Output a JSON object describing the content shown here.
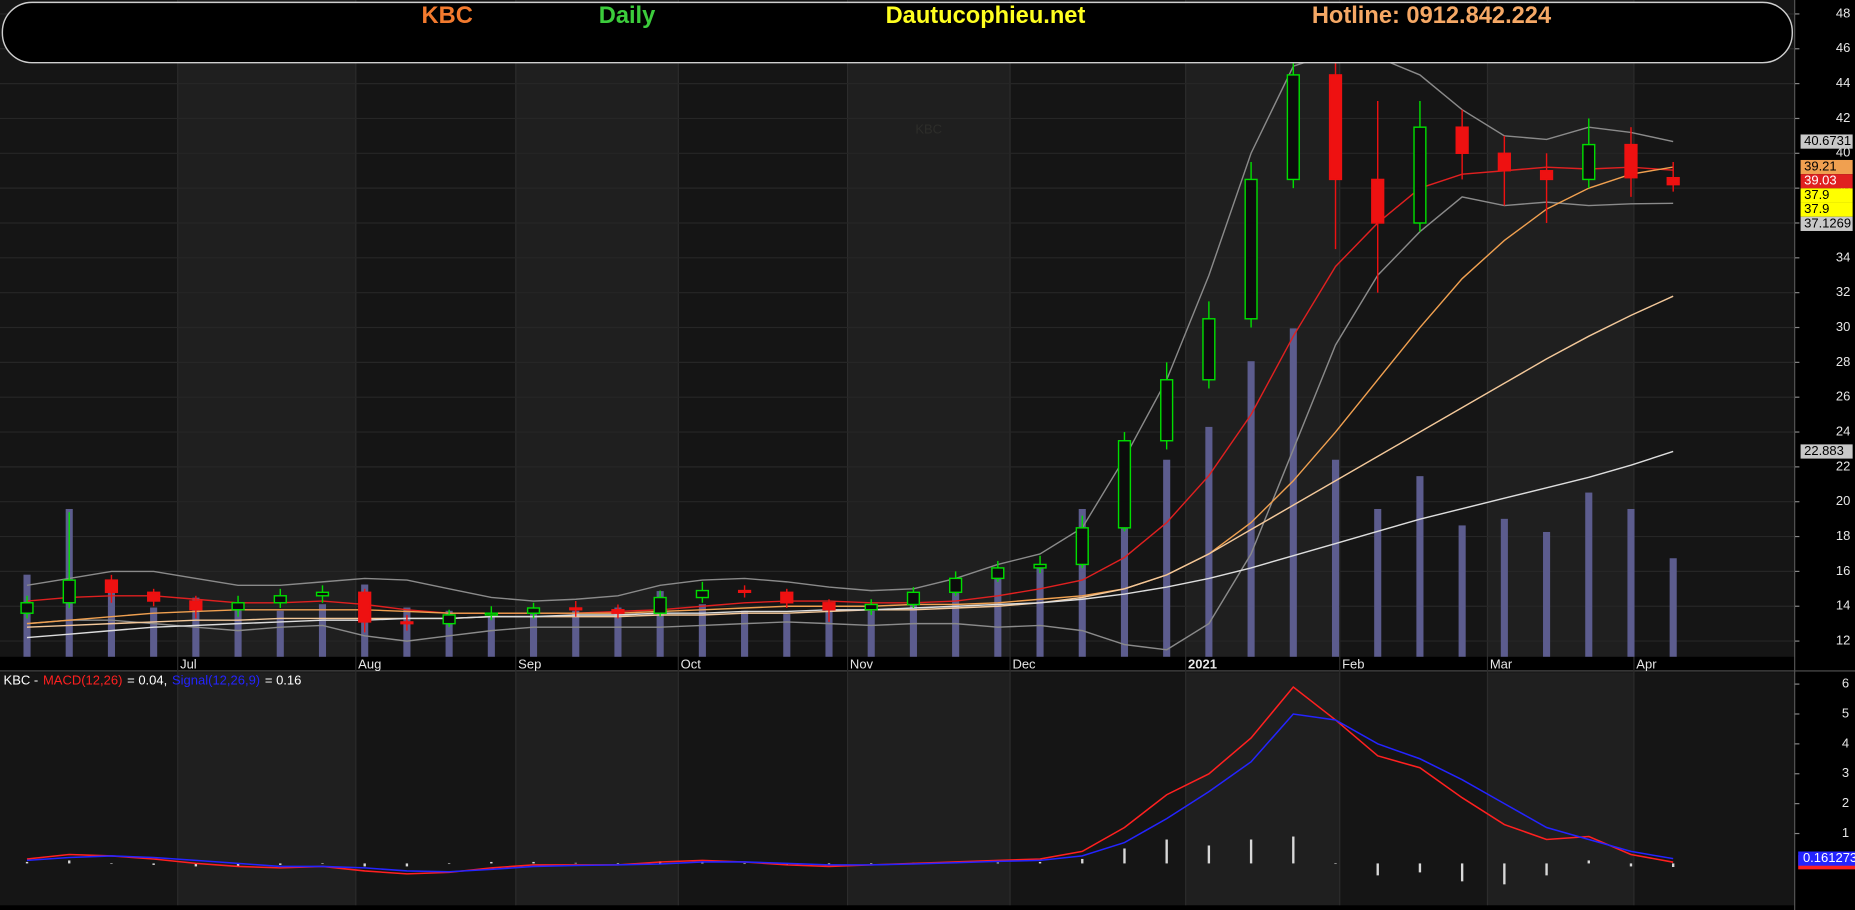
{
  "header": {
    "symbol": "KBC",
    "period": "Daily",
    "site": "Dautucophieu.net",
    "hotline": "Hotline: 0912.842.224"
  },
  "chart_data": [
    {
      "type": "candlestick",
      "watermark": "KBC",
      "xlim": [
        -0.5,
        40
      ],
      "xticks": [
        {
          "value": 3.57,
          "label": "Jul"
        },
        {
          "value": 7.79,
          "label": "Aug"
        },
        {
          "value": 11.58,
          "label": "Sep"
        },
        {
          "value": 15.43,
          "label": "Oct"
        },
        {
          "value": 19.44,
          "label": "Nov"
        },
        {
          "value": 23.29,
          "label": "Dec"
        },
        {
          "value": 27.45,
          "label": "2021"
        },
        {
          "value": 31.1,
          "label": "Feb"
        },
        {
          "value": 34.6,
          "label": "Mar"
        },
        {
          "value": 38.07,
          "label": "Apr"
        }
      ],
      "ylim": [
        11.1,
        48.8
      ],
      "yticks": [
        12,
        14,
        16,
        18,
        20,
        22,
        24,
        26,
        28,
        30,
        32,
        34,
        36,
        38,
        40,
        42,
        44,
        46,
        48
      ],
      "grid": true,
      "up_color": "#00dd00",
      "down_color": "#ee1111",
      "open": [
        13.6,
        14.2,
        15.5,
        14.8,
        14.3,
        13.8,
        14.2,
        14.6,
        14.8,
        13.1,
        13.0,
        13.5,
        13.6,
        13.9,
        13.8,
        13.6,
        14.5,
        14.9,
        14.8,
        14.2,
        13.8,
        14.1,
        14.8,
        15.6,
        16.2,
        16.4,
        18.5,
        23.5,
        27.0,
        30.5,
        38.5,
        44.5,
        38.5,
        36.0,
        41.5,
        40.0,
        39.0,
        38.5,
        40.5,
        38.6
      ],
      "high": [
        14.6,
        19.4,
        15.8,
        15.0,
        14.6,
        14.6,
        15.0,
        15.2,
        15.0,
        13.5,
        13.8,
        14.0,
        14.2,
        14.3,
        14.1,
        14.9,
        15.4,
        15.2,
        15.0,
        14.4,
        14.4,
        15.1,
        16.0,
        16.6,
        16.9,
        19.2,
        24.0,
        28.0,
        31.5,
        39.5,
        47.0,
        46.0,
        43.0,
        43.0,
        42.5,
        41.0,
        40.0,
        42.0,
        41.5,
        39.5
      ],
      "low": [
        13.3,
        13.9,
        14.2,
        14.0,
        13.3,
        13.4,
        13.9,
        14.2,
        12.5,
        12.6,
        12.8,
        13.2,
        13.3,
        13.4,
        13.3,
        13.4,
        14.2,
        14.5,
        13.9,
        13.1,
        13.5,
        13.9,
        14.6,
        15.4,
        15.9,
        16.2,
        18.3,
        23.0,
        26.5,
        30.0,
        38.0,
        34.5,
        32.0,
        35.5,
        38.5,
        37.0,
        36.0,
        38.0,
        37.5,
        37.8
      ],
      "close": [
        14.2,
        15.5,
        14.8,
        14.3,
        13.8,
        14.2,
        14.6,
        14.8,
        13.1,
        13.0,
        13.5,
        13.6,
        13.9,
        13.8,
        13.6,
        14.5,
        14.9,
        14.8,
        14.2,
        13.8,
        14.1,
        14.8,
        15.6,
        16.2,
        16.4,
        18.5,
        23.5,
        27.0,
        30.5,
        38.5,
        44.5,
        38.5,
        36.0,
        41.5,
        40.0,
        39.0,
        38.5,
        40.5,
        38.6,
        38.2
      ],
      "volume": {
        "color": "#5c5c8e",
        "ylim": [
          0,
          200
        ],
        "values": [
          25,
          45,
          20,
          15,
          18,
          15,
          14,
          16,
          22,
          15,
          14,
          12,
          13,
          14,
          15,
          20,
          16,
          14,
          13,
          15,
          14,
          18,
          22,
          25,
          28,
          45,
          55,
          60,
          70,
          90,
          100,
          60,
          45,
          55,
          40,
          42,
          38,
          50,
          45,
          30
        ]
      },
      "series": [
        {
          "color": "#8a8a8a",
          "values": [
            15.2,
            15.6,
            16.0,
            16.0,
            15.6,
            15.2,
            15.2,
            15.4,
            15.6,
            15.5,
            15.0,
            14.5,
            14.3,
            14.4,
            14.6,
            15.2,
            15.5,
            15.6,
            15.4,
            15.1,
            14.9,
            15.0,
            15.6,
            16.4,
            17.0,
            18.5,
            22.5,
            27.0,
            33.0,
            40.0,
            45.0,
            45.8,
            45.5,
            44.5,
            42.5,
            41.0,
            40.8,
            41.5,
            41.2,
            40.6731
          ]
        },
        {
          "color": "#8a8a8a",
          "values": [
            13.0,
            13.2,
            13.2,
            13.0,
            12.8,
            12.6,
            12.8,
            12.9,
            12.3,
            12.0,
            12.3,
            12.6,
            12.8,
            12.8,
            12.8,
            12.8,
            12.9,
            13.0,
            13.1,
            13.0,
            12.9,
            13.0,
            13.0,
            12.8,
            12.9,
            12.6,
            11.8,
            11.5,
            13.0,
            17.0,
            23.0,
            29.0,
            33.0,
            35.5,
            37.5,
            37.0,
            37.2,
            37.0,
            37.1,
            37.1269
          ]
        },
        {
          "color": "#e02020",
          "values": [
            14.3,
            14.5,
            14.6,
            14.6,
            14.4,
            14.2,
            14.2,
            14.3,
            14.1,
            13.8,
            13.6,
            13.6,
            13.6,
            13.6,
            13.7,
            13.8,
            14.0,
            14.2,
            14.3,
            14.3,
            14.2,
            14.2,
            14.3,
            14.6,
            15.0,
            15.5,
            16.8,
            18.8,
            21.5,
            25.0,
            29.5,
            33.5,
            36.0,
            38.0,
            38.8,
            39.0,
            39.2,
            39.1,
            39.2,
            39.03
          ]
        },
        {
          "color": "#f0a050",
          "values": [
            13.0,
            13.2,
            13.4,
            13.6,
            13.7,
            13.8,
            13.8,
            13.8,
            13.8,
            13.7,
            13.6,
            13.6,
            13.6,
            13.6,
            13.6,
            13.7,
            13.8,
            13.9,
            14.0,
            14.0,
            14.0,
            14.1,
            14.1,
            14.2,
            14.4,
            14.6,
            15.0,
            15.8,
            17.0,
            18.8,
            21.2,
            24.0,
            27.0,
            30.0,
            32.8,
            35.0,
            36.8,
            38.0,
            38.8,
            39.21
          ]
        },
        {
          "color": "#f3c89a",
          "values": [
            12.8,
            12.9,
            13.0,
            13.1,
            13.2,
            13.2,
            13.3,
            13.3,
            13.3,
            13.3,
            13.3,
            13.4,
            13.4,
            13.4,
            13.4,
            13.5,
            13.5,
            13.6,
            13.6,
            13.7,
            13.8,
            13.8,
            13.9,
            14.0,
            14.2,
            14.5,
            15.0,
            15.8,
            17.0,
            18.4,
            19.8,
            21.2,
            22.6,
            24.0,
            25.4,
            26.8,
            28.2,
            29.5,
            30.7,
            31.8
          ]
        },
        {
          "color": "#dddddd",
          "values": [
            12.2,
            12.4,
            12.6,
            12.8,
            12.9,
            13.0,
            13.1,
            13.2,
            13.2,
            13.3,
            13.3,
            13.4,
            13.4,
            13.5,
            13.5,
            13.6,
            13.6,
            13.7,
            13.7,
            13.8,
            13.8,
            13.9,
            14.0,
            14.1,
            14.2,
            14.4,
            14.7,
            15.1,
            15.6,
            16.2,
            16.9,
            17.6,
            18.3,
            19.0,
            19.6,
            20.2,
            20.8,
            21.4,
            22.1,
            22.883
          ]
        }
      ],
      "price_labels": [
        {
          "value": 40.6731,
          "color": "#c8c8c8"
        },
        {
          "value": 39.21,
          "color": "#f0a050"
        },
        {
          "value": 39.03,
          "color": "#e02020"
        },
        {
          "value": 37.9,
          "color": "#ffff00"
        },
        {
          "value": 37.9,
          "color": "#ffff00"
        },
        {
          "value": 37.1269,
          "color": "#c8c8c8"
        },
        {
          "value": 22.883,
          "color": "#c8c8c8"
        }
      ]
    },
    {
      "type": "line",
      "legend_prefix": "KBC -",
      "ylim": [
        -1.4,
        6.4
      ],
      "yticks": [
        1,
        2,
        3,
        4,
        5,
        6
      ],
      "series": [
        {
          "name": "MACD(12,26)",
          "legend_value": "= 0.04,",
          "color": "#ff2020",
          "last_value": 0.039187,
          "values": [
            0.15,
            0.3,
            0.25,
            0.15,
            0.0,
            -0.1,
            -0.15,
            -0.1,
            -0.25,
            -0.35,
            -0.3,
            -0.15,
            -0.05,
            -0.05,
            -0.05,
            0.05,
            0.1,
            0.05,
            -0.05,
            -0.1,
            -0.05,
            0.0,
            0.05,
            0.1,
            0.15,
            0.4,
            1.2,
            2.3,
            3.0,
            4.2,
            5.9,
            4.8,
            3.6,
            3.2,
            2.2,
            1.3,
            0.8,
            0.9,
            0.3,
            0.04
          ]
        },
        {
          "name": "Signal(12,26,9)",
          "legend_value": "= 0.16",
          "color": "#2424ff",
          "last_value": 0.161273,
          "values": [
            0.1,
            0.2,
            0.25,
            0.2,
            0.1,
            0.0,
            -0.1,
            -0.1,
            -0.15,
            -0.25,
            -0.28,
            -0.2,
            -0.1,
            -0.07,
            -0.05,
            -0.02,
            0.05,
            0.05,
            0.0,
            -0.05,
            -0.05,
            -0.02,
            0.02,
            0.07,
            0.1,
            0.25,
            0.7,
            1.5,
            2.4,
            3.4,
            5.0,
            4.8,
            4.0,
            3.5,
            2.8,
            2.0,
            1.2,
            0.8,
            0.4,
            0.16
          ]
        }
      ],
      "histogram": {
        "color": "#d8d8d8",
        "values": [
          0.05,
          0.1,
          0,
          -0.05,
          -0.1,
          -0.1,
          -0.05,
          0,
          -0.1,
          -0.1,
          -0.02,
          0.05,
          0.05,
          0.02,
          0,
          0.07,
          0.05,
          0,
          -0.05,
          -0.05,
          0,
          0.02,
          0.03,
          0.03,
          0.05,
          0.15,
          0.5,
          0.8,
          0.6,
          0.8,
          0.9,
          0,
          -0.4,
          -0.3,
          -0.6,
          -0.7,
          -0.4,
          0.1,
          -0.1,
          -0.12
        ]
      }
    }
  ]
}
